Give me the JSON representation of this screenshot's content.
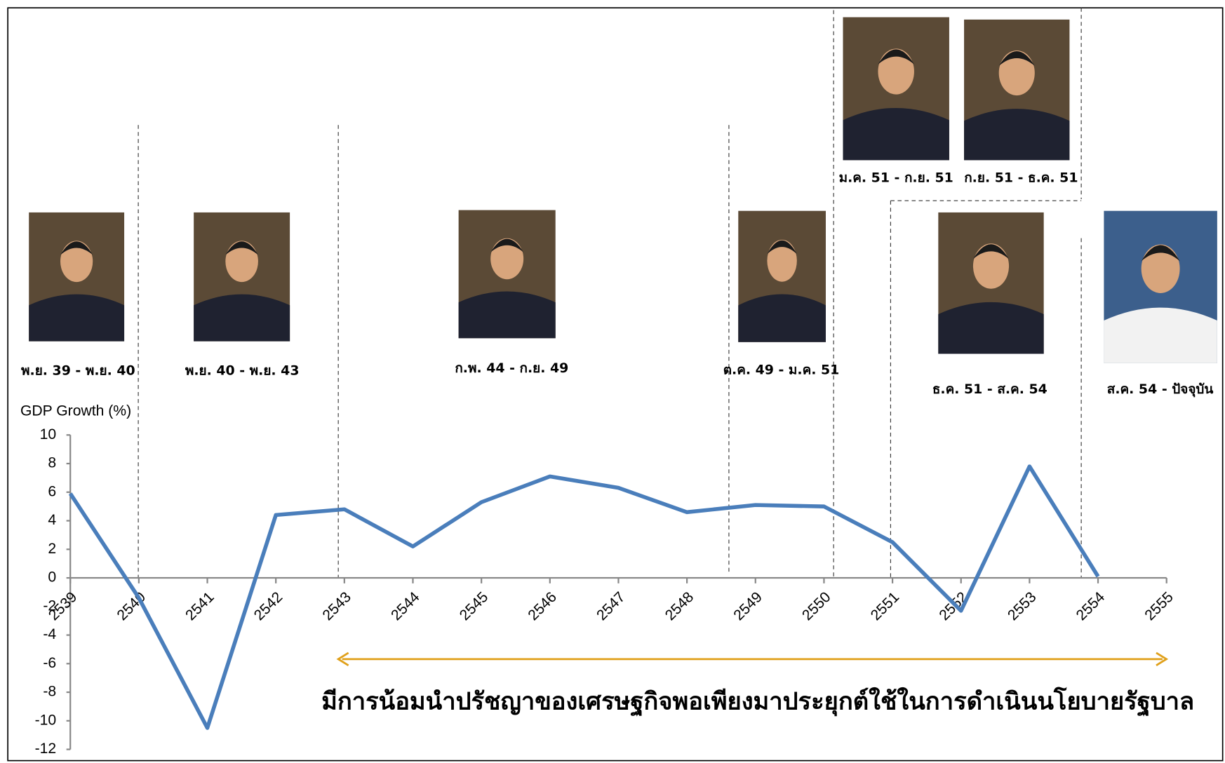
{
  "chart_data": {
    "type": "line",
    "y_label": "GDP Growth (%)",
    "categories": [
      "2539",
      "2540",
      "2541",
      "2542",
      "2543",
      "2544",
      "2545",
      "2546",
      "2547",
      "2548",
      "2549",
      "2550",
      "2551",
      "2552",
      "2553",
      "2554",
      "2555"
    ],
    "series": [
      {
        "name": "GDP Growth",
        "color": "#4a7ebb",
        "values": [
          5.9,
          -1.4,
          -10.5,
          4.4,
          4.8,
          2.2,
          5.3,
          7.1,
          6.3,
          4.6,
          5.1,
          5.0,
          2.5,
          -2.3,
          7.8,
          0.1,
          null
        ]
      }
    ],
    "ylim": [
      -12,
      10
    ],
    "yticks": [
      -12,
      -10,
      -8,
      -6,
      -4,
      -2,
      0,
      2,
      4,
      6,
      8,
      10
    ],
    "periods": [
      "พ.ย. 39 - พ.ย. 40",
      "พ.ย. 40 - พ.ย. 43",
      "ก.พ. 44 - ก.ย. 49",
      "ต.ค. 49 - ม.ค. 51",
      "ม.ค. 51 - ก.ย. 51",
      "ก.ย. 51 - ธ.ค. 51",
      "ธ.ค. 51 - ส.ค. 54",
      "ส.ค. 54 - ปัจจุบัน"
    ],
    "annotation": "มีการน้อมนำปรัชญาของเศรษฐกิจพอเพียงมาประยุกต์ใช้ในการดำเนินนโยบายรัฐบาล",
    "annotation_color": "#e0a01a"
  }
}
